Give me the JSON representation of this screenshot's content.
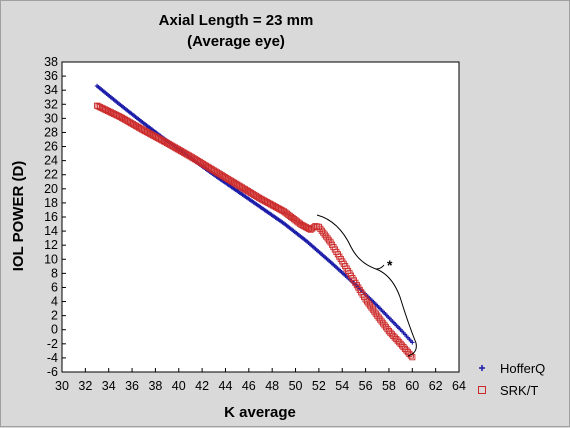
{
  "chart_data": {
    "type": "scatter",
    "title": "Axial Length = 23 mm",
    "subtitle": "(Average eye)",
    "xlabel": "K average",
    "ylabel": "IOL POWER (D)",
    "xlim": [
      30,
      64
    ],
    "ylim": [
      -6,
      38
    ],
    "x_ticks": [
      30,
      32,
      34,
      36,
      38,
      40,
      42,
      44,
      46,
      48,
      50,
      52,
      54,
      56,
      58,
      60,
      62,
      64
    ],
    "y_ticks": [
      -6,
      -4,
      -2,
      0,
      2,
      4,
      6,
      8,
      10,
      12,
      14,
      16,
      18,
      20,
      22,
      24,
      26,
      28,
      30,
      32,
      34,
      36,
      38
    ],
    "grid": false,
    "legend_position": "bottom-right",
    "annotation": "*",
    "series": [
      {
        "name": "HofferQ",
        "marker": "plus",
        "color": "#1a1aa8",
        "points": [
          [
            33.0,
            34.6
          ],
          [
            35.0,
            31.9
          ],
          [
            37.0,
            29.3
          ],
          [
            39.0,
            26.8
          ],
          [
            41.0,
            24.4
          ],
          [
            43.0,
            22.0
          ],
          [
            45.0,
            19.7
          ],
          [
            47.0,
            17.4
          ],
          [
            49.0,
            15.1
          ],
          [
            51.0,
            12.5
          ],
          [
            53.0,
            9.6
          ],
          [
            55.0,
            6.6
          ],
          [
            57.0,
            3.4
          ],
          [
            59.0,
            0.0
          ],
          [
            60.0,
            -1.8
          ]
        ]
      },
      {
        "name": "SRK/T",
        "marker": "square",
        "color": "#cc2a2a",
        "points": [
          [
            33.0,
            31.8
          ],
          [
            35.0,
            30.2
          ],
          [
            37.0,
            28.3
          ],
          [
            39.0,
            26.5
          ],
          [
            41.0,
            24.6
          ],
          [
            43.0,
            22.6
          ],
          [
            45.0,
            20.6
          ],
          [
            47.0,
            18.6
          ],
          [
            49.0,
            16.8
          ],
          [
            50.5,
            14.9
          ],
          [
            51.3,
            14.2
          ],
          [
            51.7,
            14.7
          ],
          [
            52.0,
            14.6
          ],
          [
            53.0,
            12.4
          ],
          [
            54.0,
            9.7
          ],
          [
            55.0,
            7.0
          ],
          [
            56.0,
            4.3
          ],
          [
            57.0,
            2.0
          ],
          [
            58.0,
            -0.2
          ],
          [
            59.0,
            -2.0
          ],
          [
            60.0,
            -3.9
          ]
        ]
      }
    ]
  }
}
